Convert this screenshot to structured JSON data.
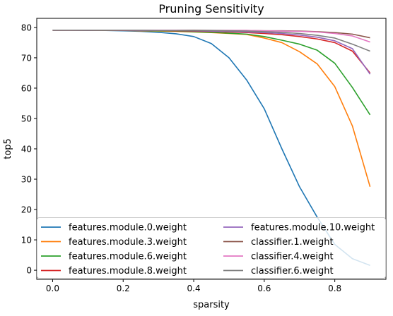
{
  "chart_data": {
    "type": "line",
    "title": "Pruning Sensitivity",
    "xlabel": "sparsity",
    "ylabel": "top5",
    "xlim": [
      -0.045,
      0.945
    ],
    "ylim": [
      -3.0,
      83.0
    ],
    "xticks": [
      0.0,
      0.2,
      0.4,
      0.6,
      0.8
    ],
    "xtick_labels": [
      "0.0",
      "0.2",
      "0.4",
      "0.6",
      "0.8"
    ],
    "yticks": [
      0,
      10,
      20,
      30,
      40,
      50,
      60,
      70,
      80
    ],
    "ytick_labels": [
      "0",
      "10",
      "20",
      "30",
      "40",
      "50",
      "60",
      "70",
      "80"
    ],
    "grid": false,
    "legend": {
      "placement": "lower-center",
      "columns": 2
    },
    "x": [
      0.0,
      0.05,
      0.1,
      0.15,
      0.2,
      0.25,
      0.3,
      0.35,
      0.4,
      0.45,
      0.5,
      0.55,
      0.6,
      0.65,
      0.7,
      0.75,
      0.8,
      0.85,
      0.9
    ],
    "series": [
      {
        "name": "features.module.0.weight",
        "color": "#1f77b4",
        "values": [
          79.1,
          79.1,
          79.0,
          79.0,
          78.9,
          78.7,
          78.4,
          77.9,
          77.0,
          74.7,
          70.0,
          62.7,
          53.2,
          40.0,
          27.5,
          17.5,
          8.5,
          3.8,
          1.6
        ]
      },
      {
        "name": "features.module.3.weight",
        "color": "#ff7f0e",
        "values": [
          79.1,
          79.1,
          79.1,
          79.0,
          79.0,
          78.9,
          78.8,
          78.7,
          78.5,
          78.3,
          78.0,
          77.7,
          76.5,
          75.0,
          72.0,
          68.0,
          60.5,
          47.5,
          27.5
        ]
      },
      {
        "name": "features.module.6.weight",
        "color": "#2ca02c",
        "values": [
          79.1,
          79.1,
          79.1,
          79.0,
          79.0,
          79.0,
          78.9,
          78.8,
          78.6,
          78.4,
          78.1,
          77.8,
          77.0,
          75.8,
          74.5,
          72.5,
          68.2,
          60.2,
          51.2
        ]
      },
      {
        "name": "features.module.8.weight",
        "color": "#d62728",
        "values": [
          79.1,
          79.1,
          79.1,
          79.1,
          79.0,
          79.0,
          79.0,
          78.9,
          78.8,
          78.7,
          78.5,
          78.3,
          78.0,
          77.6,
          77.0,
          76.2,
          75.0,
          72.2,
          65.0
        ]
      },
      {
        "name": "features.module.10.weight",
        "color": "#9467bd",
        "values": [
          79.1,
          79.1,
          79.1,
          79.1,
          79.1,
          79.0,
          79.0,
          79.0,
          78.9,
          78.8,
          78.7,
          78.5,
          78.3,
          78.0,
          77.5,
          76.8,
          75.6,
          73.0,
          64.6
        ]
      },
      {
        "name": "classifier.1.weight",
        "color": "#8c564b",
        "values": [
          79.1,
          79.1,
          79.1,
          79.1,
          79.1,
          79.1,
          79.1,
          79.1,
          79.1,
          79.0,
          79.0,
          79.0,
          78.9,
          78.9,
          78.8,
          78.6,
          78.3,
          77.8,
          76.6
        ]
      },
      {
        "name": "classifier.4.weight",
        "color": "#e377c2",
        "values": [
          79.1,
          79.1,
          79.1,
          79.1,
          79.1,
          79.1,
          79.1,
          79.1,
          79.0,
          79.0,
          79.0,
          79.0,
          78.9,
          78.8,
          78.7,
          78.5,
          78.0,
          77.2,
          75.2
        ]
      },
      {
        "name": "classifier.6.weight",
        "color": "#7f7f7f",
        "values": [
          79.1,
          79.1,
          79.1,
          79.1,
          79.1,
          79.1,
          79.0,
          79.0,
          79.0,
          79.0,
          78.9,
          78.8,
          78.6,
          78.4,
          78.0,
          77.4,
          76.5,
          74.5,
          72.2
        ]
      }
    ]
  }
}
